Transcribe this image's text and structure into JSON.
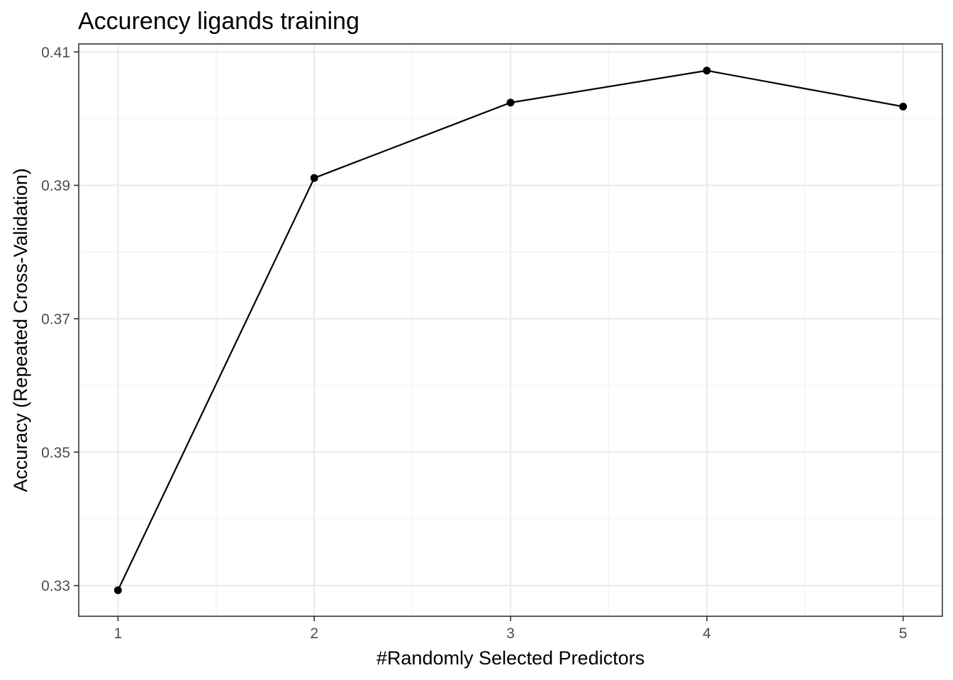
{
  "chart_data": {
    "type": "line",
    "title": "Accurency ligands training",
    "xlabel": "#Randomly Selected Predictors",
    "ylabel": "Accuracy (Repeated Cross-Validation)",
    "x": [
      1,
      2,
      3,
      4,
      5
    ],
    "series": [
      {
        "values": [
          0.3293,
          0.3911,
          0.4024,
          0.4072,
          0.4018
        ],
        "color": "#000000"
      }
    ],
    "xlim": [
      0.8,
      5.2
    ],
    "ylim": [
      0.3254,
      0.4112
    ],
    "x_ticks": [
      {
        "value": 1,
        "label": "1"
      },
      {
        "value": 2,
        "label": "2"
      },
      {
        "value": 3,
        "label": "3"
      },
      {
        "value": 4,
        "label": "4"
      },
      {
        "value": 5,
        "label": "5"
      }
    ],
    "y_ticks": [
      {
        "value": 0.33,
        "label": "0.33"
      },
      {
        "value": 0.35,
        "label": "0.35"
      },
      {
        "value": 0.37,
        "label": "0.37"
      },
      {
        "value": 0.39,
        "label": "0.39"
      },
      {
        "value": 0.41,
        "label": "0.41"
      }
    ],
    "x_minor": [
      1.5,
      2.5,
      3.5,
      4.5
    ],
    "y_minor": [
      0.34,
      0.36,
      0.38,
      0.4
    ],
    "grid": true,
    "legend": "none",
    "theme": "bw"
  }
}
